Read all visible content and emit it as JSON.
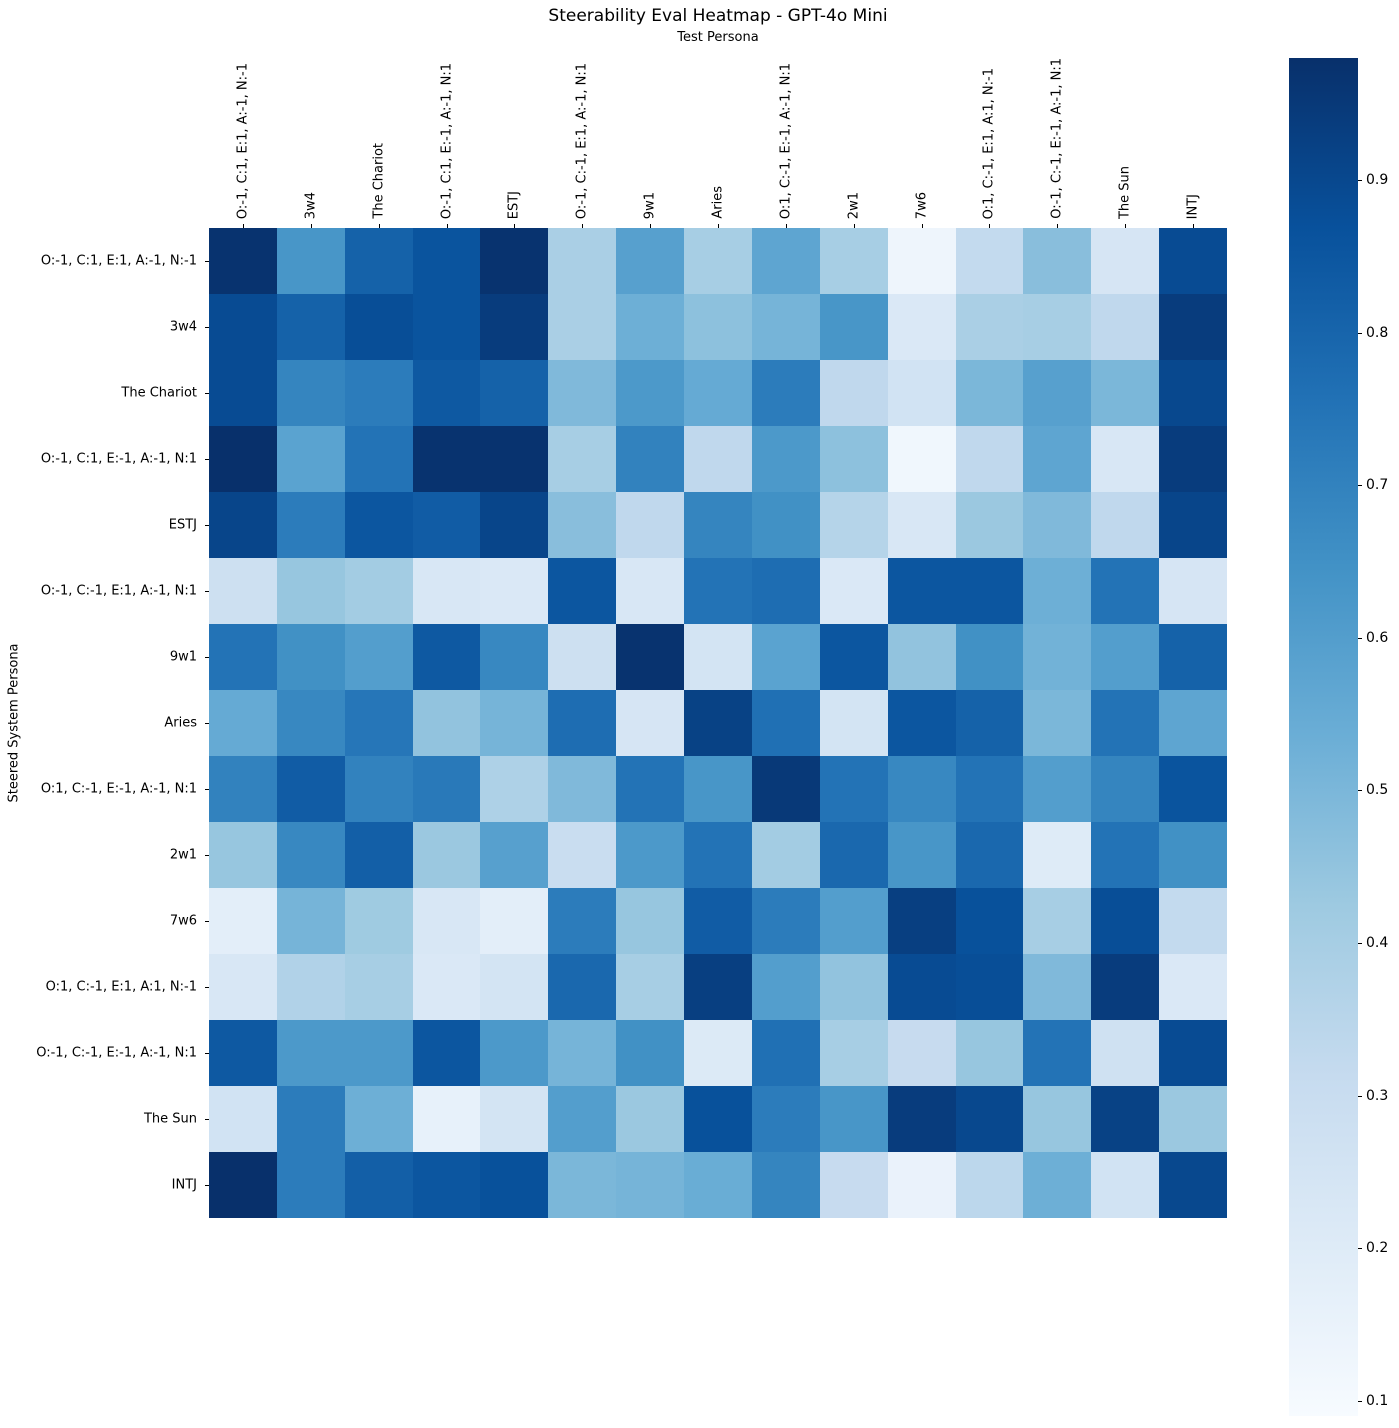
{
  "title": "Steerability Eval Heatmap - GPT-4o Mini",
  "x_axis_title": "Test Persona",
  "y_axis_title": "Steered System Persona",
  "colormap_anchors": [
    "#f7fbff",
    "#deebf7",
    "#c6dbef",
    "#9ecae1",
    "#6baed6",
    "#4292c6",
    "#2171b5",
    "#08519c",
    "#08306b"
  ],
  "chart_data": {
    "type": "heatmap",
    "colormap": "Blues",
    "vmin": 0.09,
    "vmax": 0.98,
    "legend_position": "right-colorbar",
    "colorbar_ticks": [
      0.9,
      0.8,
      0.7,
      0.6,
      0.5,
      0.4,
      0.3,
      0.2,
      0.1
    ],
    "x_categories": [
      "O:-1, C:1, E:1, A:-1, N:-1",
      "3w4",
      "The Chariot",
      "O:-1, C:1, E:-1, A:-1, N:1",
      "ESTJ",
      "O:-1, C:-1, E:1, A:-1, N:1",
      "9w1",
      "Aries",
      "O:1, C:-1, E:-1, A:-1, N:1",
      "2w1",
      "7w6",
      "O:1, C:-1, E:1, A:1, N:-1",
      "O:-1, C:-1, E:-1, A:-1, N:1",
      "The Sun",
      "INTJ"
    ],
    "y_categories": [
      "O:-1, C:1, E:1, A:-1, N:-1",
      "3w4",
      "The Chariot",
      "O:-1, C:1, E:-1, A:-1, N:1",
      "ESTJ",
      "O:-1, C:-1, E:1, A:-1, N:1",
      "9w1",
      "Aries",
      "O:1, C:-1, E:-1, A:-1, N:1",
      "2w1",
      "7w6",
      "O:1, C:-1, E:1, A:1, N:-1",
      "O:-1, C:-1, E:-1, A:-1, N:1",
      "The Sun",
      "INTJ"
    ],
    "values": [
      [
        0.97,
        0.63,
        0.81,
        0.86,
        0.97,
        0.39,
        0.59,
        0.4,
        0.57,
        0.4,
        0.13,
        0.32,
        0.47,
        0.24,
        0.89
      ],
      [
        0.89,
        0.81,
        0.88,
        0.86,
        0.94,
        0.39,
        0.53,
        0.46,
        0.51,
        0.63,
        0.22,
        0.39,
        0.4,
        0.33,
        0.94
      ],
      [
        0.89,
        0.69,
        0.72,
        0.84,
        0.81,
        0.49,
        0.62,
        0.55,
        0.72,
        0.33,
        0.26,
        0.5,
        0.59,
        0.5,
        0.9
      ],
      [
        0.98,
        0.58,
        0.75,
        0.97,
        0.97,
        0.4,
        0.7,
        0.33,
        0.62,
        0.46,
        0.12,
        0.33,
        0.57,
        0.23,
        0.94
      ],
      [
        0.91,
        0.72,
        0.85,
        0.83,
        0.91,
        0.47,
        0.33,
        0.69,
        0.65,
        0.36,
        0.23,
        0.43,
        0.49,
        0.33,
        0.91
      ],
      [
        0.28,
        0.44,
        0.41,
        0.23,
        0.22,
        0.85,
        0.23,
        0.75,
        0.77,
        0.22,
        0.85,
        0.85,
        0.53,
        0.75,
        0.24
      ],
      [
        0.75,
        0.65,
        0.6,
        0.84,
        0.68,
        0.28,
        0.97,
        0.25,
        0.58,
        0.85,
        0.45,
        0.65,
        0.52,
        0.6,
        0.81
      ],
      [
        0.55,
        0.68,
        0.74,
        0.45,
        0.51,
        0.77,
        0.24,
        0.92,
        0.76,
        0.25,
        0.85,
        0.81,
        0.5,
        0.75,
        0.57
      ],
      [
        0.7,
        0.83,
        0.7,
        0.73,
        0.38,
        0.49,
        0.75,
        0.63,
        0.95,
        0.75,
        0.68,
        0.75,
        0.6,
        0.69,
        0.86
      ],
      [
        0.44,
        0.68,
        0.82,
        0.43,
        0.59,
        0.3,
        0.62,
        0.75,
        0.41,
        0.79,
        0.63,
        0.79,
        0.2,
        0.75,
        0.65
      ],
      [
        0.18,
        0.51,
        0.42,
        0.23,
        0.18,
        0.72,
        0.44,
        0.83,
        0.72,
        0.6,
        0.93,
        0.87,
        0.4,
        0.88,
        0.32
      ],
      [
        0.23,
        0.37,
        0.4,
        0.22,
        0.25,
        0.79,
        0.4,
        0.93,
        0.6,
        0.45,
        0.89,
        0.88,
        0.49,
        0.94,
        0.22
      ],
      [
        0.84,
        0.62,
        0.62,
        0.85,
        0.62,
        0.51,
        0.65,
        0.21,
        0.76,
        0.4,
        0.31,
        0.44,
        0.75,
        0.27,
        0.89
      ],
      [
        0.26,
        0.72,
        0.53,
        0.16,
        0.25,
        0.6,
        0.43,
        0.87,
        0.72,
        0.63,
        0.94,
        0.9,
        0.44,
        0.92,
        0.43
      ],
      [
        0.98,
        0.72,
        0.82,
        0.85,
        0.87,
        0.5,
        0.51,
        0.54,
        0.69,
        0.31,
        0.15,
        0.34,
        0.53,
        0.26,
        0.9
      ]
    ]
  }
}
